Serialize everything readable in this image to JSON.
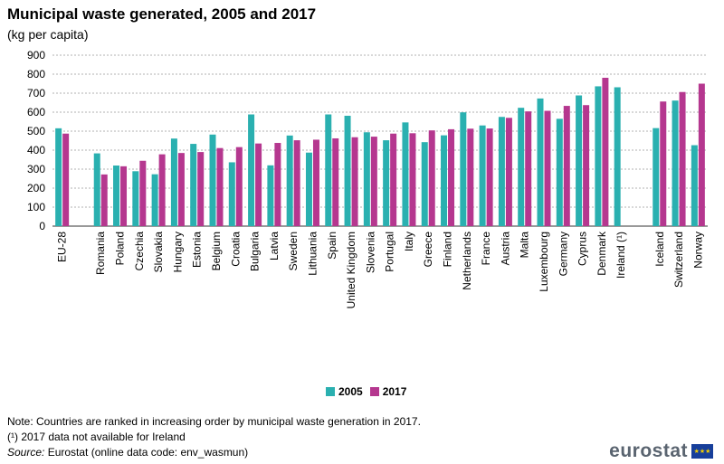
{
  "chart_data": {
    "type": "bar",
    "title": "Municipal waste generated, 2005 and 2017",
    "subtitle": "(kg per capita)",
    "ylim": [
      0,
      900
    ],
    "yticks": [
      0,
      100,
      200,
      300,
      400,
      500,
      600,
      700,
      800,
      900
    ],
    "xlabel": "",
    "ylabel": "",
    "legend_position": "bottom-center",
    "grid": true,
    "categories": [
      "EU-28",
      "",
      "Romania",
      "Poland",
      "Czechia",
      "Slovakia",
      "Hungary",
      "Estonia",
      "Belgium",
      "Croatia",
      "Bulgaria",
      "Latvia",
      "Sweden",
      "Lithuania",
      "Spain",
      "United Kingdom",
      "Slovenia",
      "Portugal",
      "Italy",
      "Greece",
      "Finland",
      "Netherlands",
      "France",
      "Austria",
      "Malta",
      "Luxembourg",
      "Germany",
      "Cyprus",
      "Denmark",
      "Ireland (¹)",
      "",
      "Iceland",
      "Switzerland",
      "Norway"
    ],
    "series": [
      {
        "name": "2005",
        "color": "#2ab0b0",
        "values": [
          515,
          null,
          383,
          319,
          289,
          273,
          461,
          433,
          482,
          336,
          588,
          320,
          477,
          387,
          588,
          581,
          494,
          452,
          546,
          442,
          478,
          599,
          530,
          575,
          623,
          672,
          565,
          688,
          736,
          731,
          null,
          516,
          661,
          426
        ]
      },
      {
        "name": "2017",
        "color": "#b5378f",
        "values": [
          487,
          null,
          272,
          315,
          344,
          378,
          385,
          390,
          411,
          416,
          435,
          438,
          452,
          455,
          462,
          468,
          471,
          487,
          489,
          504,
          510,
          513,
          514,
          570,
          604,
          607,
          633,
          637,
          781,
          null,
          null,
          656,
          706,
          750
        ]
      }
    ]
  },
  "legend": [
    {
      "label": "2005",
      "color": "#2ab0b0"
    },
    {
      "label": "2017",
      "color": "#b5378f"
    }
  ],
  "notes": {
    "line1": "Note: Countries are ranked in increasing order by municipal waste generation in 2017.",
    "line2": "(¹) 2017 data not available for Ireland",
    "source_label": "Source:",
    "source_text": " Eurostat (online data code: env_wasmun)"
  },
  "brand": {
    "name": "eurostat",
    "flag_stars": "★★★"
  }
}
